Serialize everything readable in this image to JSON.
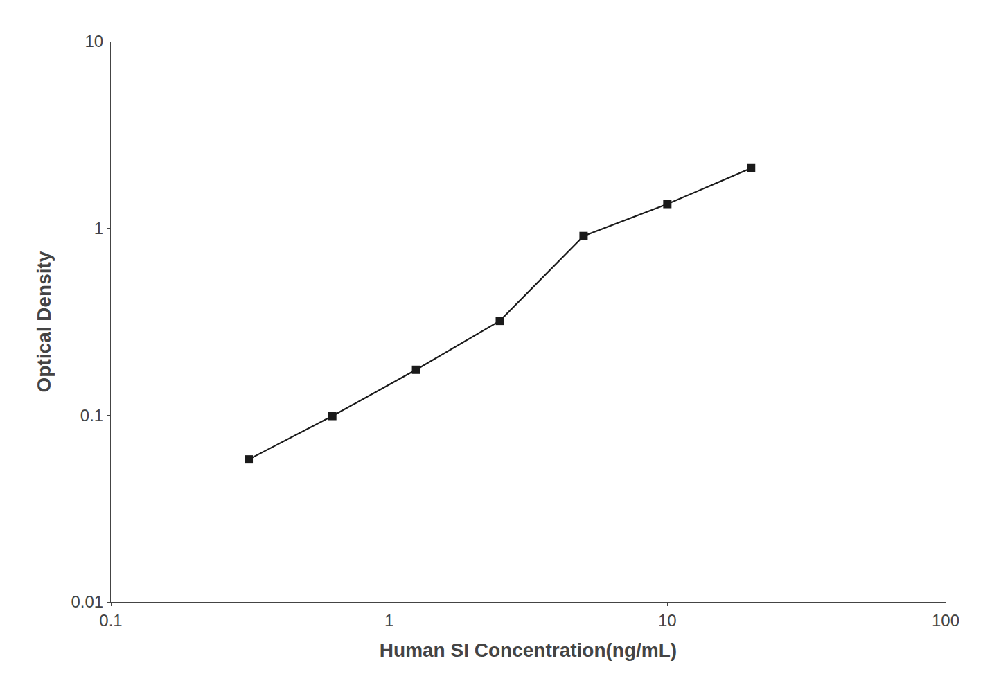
{
  "chart_data": {
    "type": "line",
    "x": [
      0.313,
      0.625,
      1.25,
      2.5,
      5.0,
      10.0,
      20.0
    ],
    "values": [
      0.058,
      0.099,
      0.175,
      0.32,
      0.91,
      1.35,
      2.1
    ],
    "xlabel": "Human SI Concentration(ng/mL)",
    "ylabel": "Optical Density",
    "xlim": [
      0.1,
      100
    ],
    "ylim": [
      0.01,
      10
    ],
    "xticks": [
      0.1,
      1,
      10,
      100
    ],
    "yticks": [
      0.01,
      0.1,
      1,
      10
    ],
    "log": true,
    "grid": false,
    "color": "#1a1a1a",
    "marker": "square"
  }
}
